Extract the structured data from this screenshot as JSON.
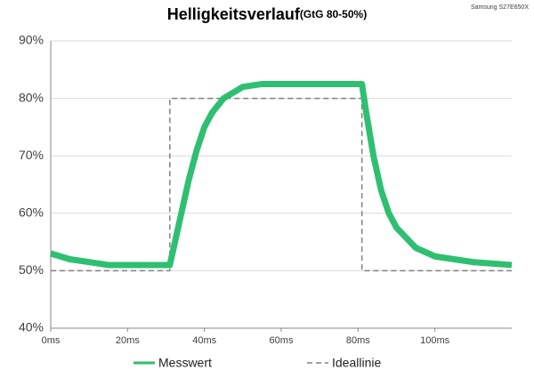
{
  "chart_data": {
    "type": "line",
    "title": "Helligkeitsverlauf",
    "subtitle": "(GtG 80-50%)",
    "annotation": "Samsung S27E650X",
    "xlim": [
      0,
      120
    ],
    "xticks": [
      {
        "value": 0,
        "label": "0ms"
      },
      {
        "value": 20,
        "label": "20ms"
      },
      {
        "value": 40,
        "label": "40ms"
      },
      {
        "value": 60,
        "label": "60ms"
      },
      {
        "value": 80,
        "label": "80ms"
      },
      {
        "value": 100,
        "label": "100ms"
      }
    ],
    "ylim": [
      40,
      90
    ],
    "yticks": [
      {
        "value": 40,
        "label": "40%"
      },
      {
        "value": 50,
        "label": "50%"
      },
      {
        "value": 60,
        "label": "60%"
      },
      {
        "value": 70,
        "label": "70%"
      },
      {
        "value": 80,
        "label": "80%"
      },
      {
        "value": 90,
        "label": "90%"
      }
    ],
    "grid": true,
    "legend": "bottom",
    "series": [
      {
        "name": "Messwert",
        "color": "#2fbf71",
        "dashed": false,
        "x": [
          0,
          5,
          10,
          15,
          20,
          25,
          30,
          31,
          32,
          34,
          36,
          38,
          40,
          42,
          45,
          50,
          55,
          60,
          70,
          80,
          81,
          82,
          84,
          86,
          88,
          90,
          95,
          100,
          105,
          110,
          120
        ],
        "values": [
          53,
          52,
          51.5,
          51,
          51,
          51,
          51,
          51,
          54,
          60,
          66,
          71,
          75,
          77.5,
          80,
          82,
          82.5,
          82.5,
          82.5,
          82.5,
          82.5,
          78,
          70,
          64,
          60,
          57.5,
          54,
          52.5,
          52,
          51.5,
          51
        ]
      },
      {
        "name": "Ideallinie",
        "color": "#808080",
        "dashed": true,
        "x": [
          0,
          31,
          31,
          81,
          81,
          120
        ],
        "values": [
          50,
          50,
          80,
          80,
          50,
          50
        ]
      }
    ]
  }
}
